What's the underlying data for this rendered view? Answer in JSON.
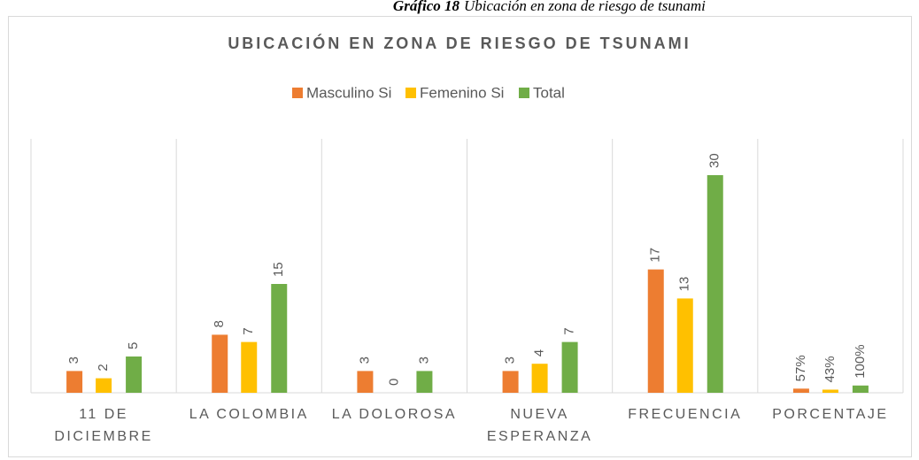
{
  "caption": {
    "label": "Gráfico 18",
    "text": "Ubicación en zona de riesgo de tsunami"
  },
  "chart_data": {
    "type": "bar",
    "title": "UBICACIÓN EN ZONA DE RIESGO DE TSUNAMI",
    "categories": [
      [
        "11 DE",
        "DICIEMBRE"
      ],
      [
        "LA COLOMBIA"
      ],
      [
        "LA DOLOROSA"
      ],
      [
        "NUEVA",
        "ESPERANZA"
      ],
      [
        "FRECUENCIA"
      ],
      [
        "PORCENTAJE"
      ]
    ],
    "series": [
      {
        "name": "Masculino Si",
        "color": "#ED7D31",
        "values": [
          3,
          8,
          3,
          3,
          17,
          0.57
        ],
        "value_labels": [
          "3",
          "8",
          "3",
          "3",
          "17",
          "57%"
        ]
      },
      {
        "name": "Femenino Si",
        "color": "#FFC000",
        "values": [
          2,
          7,
          0,
          4,
          13,
          0.43
        ],
        "value_labels": [
          "2",
          "7",
          "0",
          "4",
          "13",
          "43%"
        ]
      },
      {
        "name": "Total",
        "color": "#70AD47",
        "values": [
          5,
          15,
          3,
          7,
          30,
          1
        ],
        "value_labels": [
          "5",
          "15",
          "3",
          "7",
          "30",
          "100%"
        ]
      }
    ],
    "ylim": [
      0,
      35
    ],
    "legend": "top"
  }
}
